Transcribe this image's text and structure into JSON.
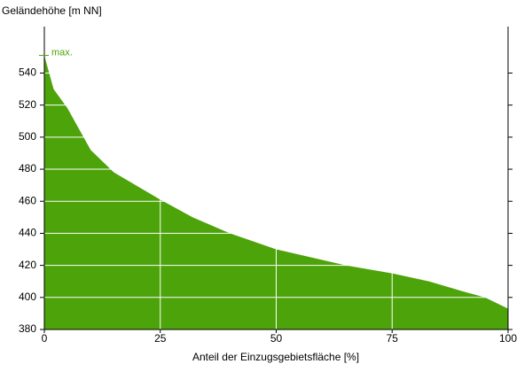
{
  "chart_data": {
    "type": "area",
    "ylabel": "Geländehöhe [m NN]",
    "xlabel": "Anteil der Einzugsgebietsfläche [%]",
    "annotation": "max.",
    "x": [
      0,
      2,
      5,
      10,
      15,
      25,
      32,
      40,
      50,
      65,
      75,
      83,
      90,
      95,
      100
    ],
    "values": [
      551,
      530,
      518,
      492,
      478,
      461,
      450,
      440,
      430,
      420,
      415,
      410,
      404,
      400,
      393
    ],
    "color": "#4ca30a",
    "xlim": [
      0,
      100
    ],
    "xticks": [
      0,
      25,
      50,
      75,
      100
    ],
    "ylim": [
      380,
      569
    ],
    "yticks": [
      380,
      400,
      420,
      440,
      460,
      480,
      500,
      520,
      540
    ],
    "grid": true
  }
}
